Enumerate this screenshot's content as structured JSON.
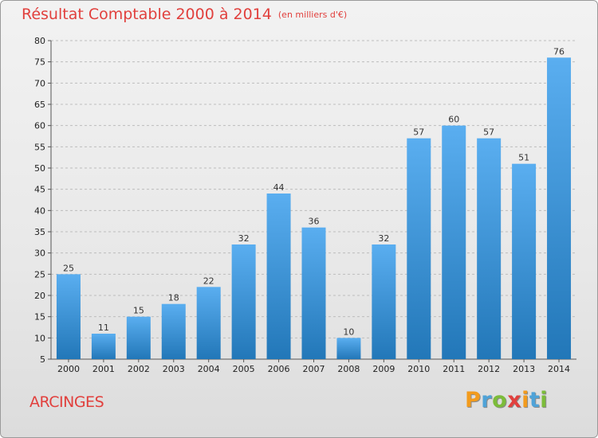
{
  "header": {
    "title": "Résultat Comptable 2000 à 2014",
    "subtitle": "(en milliers d'€)"
  },
  "footer": {
    "place": "ARCINGES",
    "brand": "Proxiti"
  },
  "colors": {
    "title": "#e1403d",
    "bar_top": "#5aaef0",
    "bar_bottom": "#2277b8",
    "brand_letters": [
      "#f29b1d",
      "#4fa3d8",
      "#7cbc3a",
      "#e1403d",
      "#f29b1d",
      "#4fa3d8",
      "#7cbc3a"
    ]
  },
  "chart_data": {
    "type": "bar",
    "title": "Résultat Comptable 2000 à 2014",
    "subtitle": "(en milliers d'€)",
    "categories": [
      "2000",
      "2001",
      "2002",
      "2003",
      "2004",
      "2005",
      "2006",
      "2007",
      "2008",
      "2009",
      "2010",
      "2011",
      "2012",
      "2013",
      "2014"
    ],
    "values": [
      25,
      11,
      15,
      18,
      22,
      32,
      44,
      36,
      10,
      32,
      57,
      60,
      57,
      51,
      76
    ],
    "ylim": [
      5,
      80
    ],
    "yticks": [
      5,
      10,
      15,
      20,
      25,
      30,
      35,
      40,
      45,
      50,
      55,
      60,
      65,
      70,
      75,
      80
    ],
    "grid": "horizontal-dashed",
    "data_labels": true
  }
}
